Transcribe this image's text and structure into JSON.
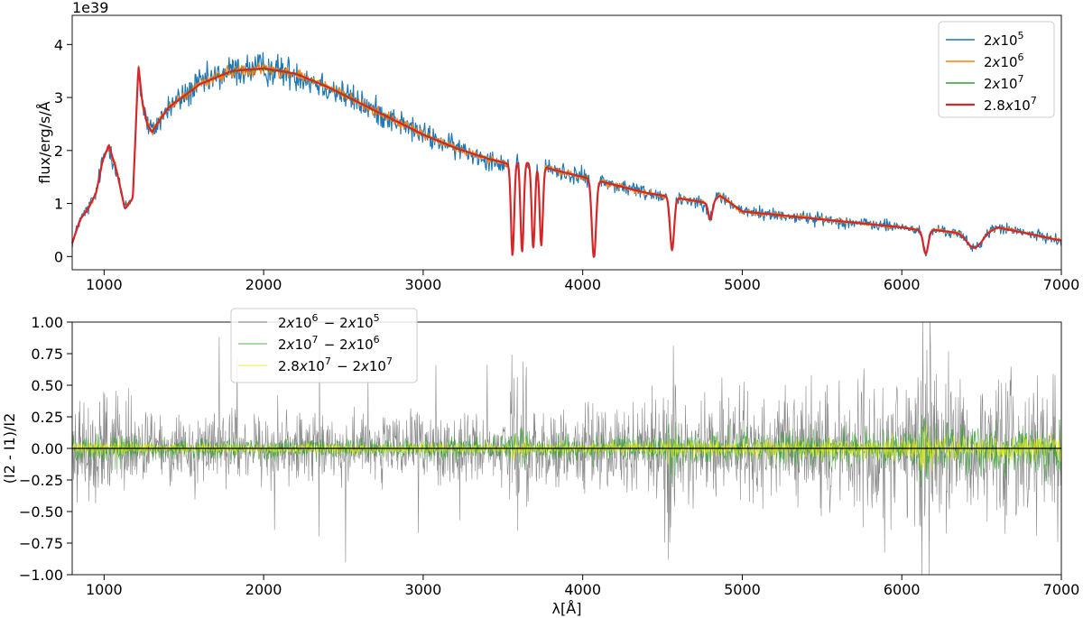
{
  "chart_data": [
    {
      "type": "line",
      "ylabel": "flux/erg/s/Å",
      "scale_label": "1e39",
      "xlim": [
        800,
        7000
      ],
      "ylim": [
        -0.25,
        4.55
      ],
      "xticks": [
        1000,
        2000,
        3000,
        4000,
        5000,
        6000,
        7000
      ],
      "xtick_labels": [
        "1000",
        "2000",
        "3000",
        "4000",
        "5000",
        "6000",
        "7000"
      ],
      "yticks": [
        0,
        1,
        2,
        3,
        4
      ],
      "ytick_labels": [
        "0",
        "1",
        "2",
        "3",
        "4"
      ],
      "legend_position": "top-right",
      "continuum_x": [
        800,
        850,
        900,
        950,
        990,
        1030,
        1080,
        1130,
        1180,
        1215,
        1240,
        1270,
        1300,
        1400,
        1600,
        1800,
        2000,
        2200,
        2400,
        2600,
        2800,
        3000,
        3200,
        3400,
        3530,
        3600,
        3700,
        3800,
        4000,
        4200,
        4400,
        4600,
        4800,
        4860,
        5000,
        5500,
        6000,
        6100,
        6200,
        6500,
        6600,
        7000
      ],
      "continuum_y": [
        0.25,
        0.7,
        0.9,
        1.2,
        1.8,
        2.1,
        1.6,
        0.9,
        1.1,
        3.6,
        2.9,
        2.5,
        2.35,
        2.8,
        3.25,
        3.5,
        3.55,
        3.45,
        3.2,
        2.9,
        2.6,
        2.3,
        2.05,
        1.85,
        1.75,
        1.8,
        1.75,
        1.65,
        1.5,
        1.35,
        1.2,
        1.1,
        1.0,
        1.15,
        0.85,
        0.7,
        0.55,
        0.5,
        0.5,
        0.4,
        0.55,
        0.3
      ],
      "absorption_features": [
        {
          "center": 3560,
          "depth": 1.75,
          "width": 14
        },
        {
          "center": 3620,
          "depth": 1.7,
          "width": 14
        },
        {
          "center": 3690,
          "depth": 1.6,
          "width": 14
        },
        {
          "center": 3740,
          "depth": 1.5,
          "width": 14
        },
        {
          "center": 4070,
          "depth": 1.5,
          "width": 18
        },
        {
          "center": 4560,
          "depth": 1.0,
          "width": 18
        },
        {
          "center": 4800,
          "depth": 0.3,
          "width": 18
        },
        {
          "center": 6150,
          "depth": 0.45,
          "width": 22
        },
        {
          "center": 6450,
          "depth": 0.25,
          "width": 60
        }
      ],
      "series": [
        {
          "name": "2x10^5",
          "color": "#1f77b4",
          "noise": 0.12
        },
        {
          "name": "2x10^6",
          "color": "#ff7f0e",
          "noise": 0.045
        },
        {
          "name": "2x10^7",
          "color": "#2ca02c",
          "noise": 0.015
        },
        {
          "name": "2.8x10^7",
          "color": "#d62728",
          "noise": 0.0
        }
      ]
    },
    {
      "type": "line",
      "xlabel": "λ[Å]",
      "ylabel": "(I2 - I1)/I2",
      "xlim": [
        800,
        7000
      ],
      "ylim": [
        -1.0,
        1.0
      ],
      "xticks": [
        1000,
        2000,
        3000,
        4000,
        5000,
        6000,
        7000
      ],
      "xtick_labels": [
        "1000",
        "2000",
        "3000",
        "4000",
        "5000",
        "6000",
        "7000"
      ],
      "yticks": [
        -1.0,
        -0.75,
        -0.5,
        -0.25,
        0.0,
        0.25,
        0.5,
        0.75,
        1.0
      ],
      "ytick_labels": [
        "−1.00",
        "−0.75",
        "−0.50",
        "−0.25",
        "0.00",
        "0.25",
        "0.50",
        "0.75",
        "1.00"
      ],
      "legend_position": "top-left",
      "series": [
        {
          "name": "2x10^6 - 2x10^5",
          "color": "#555555",
          "noise": 0.22
        },
        {
          "name": "2x10^7 - 2x10^6",
          "color": "#2ca02c",
          "noise": 0.07
        },
        {
          "name": "2.8x10^7 - 2x10^7",
          "color": "#e8f000",
          "noise": 0.035
        }
      ]
    }
  ]
}
